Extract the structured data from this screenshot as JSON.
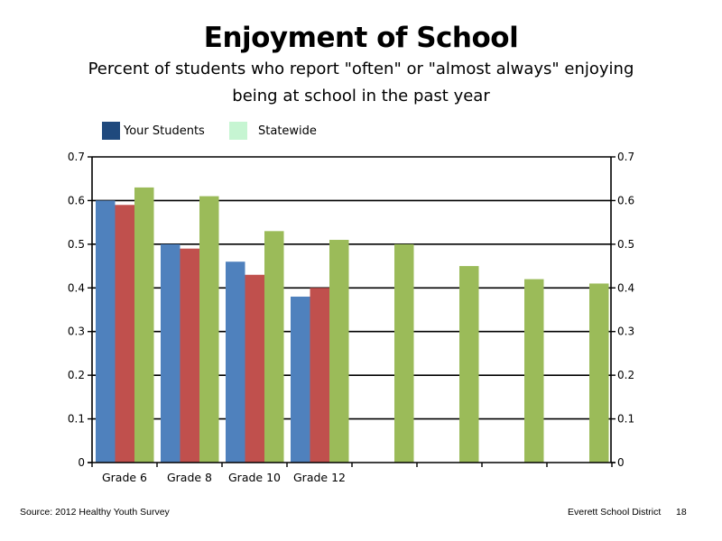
{
  "slide": {
    "source": "Source: 2012 Healthy Youth Survey",
    "organization": "Everett School District",
    "page_number": "18"
  },
  "chart_data": {
    "type": "bar",
    "title": "Enjoyment of School",
    "subtitle_line1": "Percent of students who report \"often\" or \"almost always\" enjoying",
    "subtitle_line2": "being at school in the past year",
    "legend": [
      {
        "label": "Your Students",
        "color": "#1f497d"
      },
      {
        "label": "Statewide",
        "color": "#c6f5d2"
      }
    ],
    "categories": [
      "Grade 6",
      "Grade 8",
      "Grade 10",
      "Grade 12",
      "",
      "",
      "",
      ""
    ],
    "series": [
      {
        "color": "#4f81bd",
        "values": [
          0.6,
          0.5,
          0.46,
          0.38,
          null,
          null,
          null,
          null
        ]
      },
      {
        "color": "#c0504d",
        "values": [
          0.59,
          0.49,
          0.43,
          0.4,
          null,
          null,
          null,
          null
        ]
      },
      {
        "color": "#9bbb59",
        "values": [
          0.63,
          0.61,
          0.53,
          0.51,
          0.5,
          0.45,
          0.42,
          0.41
        ]
      }
    ],
    "y_ticks": [
      "0",
      "0.1",
      "0.2",
      "0.3",
      "0.4",
      "0.5",
      "0.6",
      "0.7"
    ],
    "ylim": [
      0,
      0.7
    ],
    "grid": true,
    "secondary_axis": true,
    "legend_position": "top-left"
  }
}
